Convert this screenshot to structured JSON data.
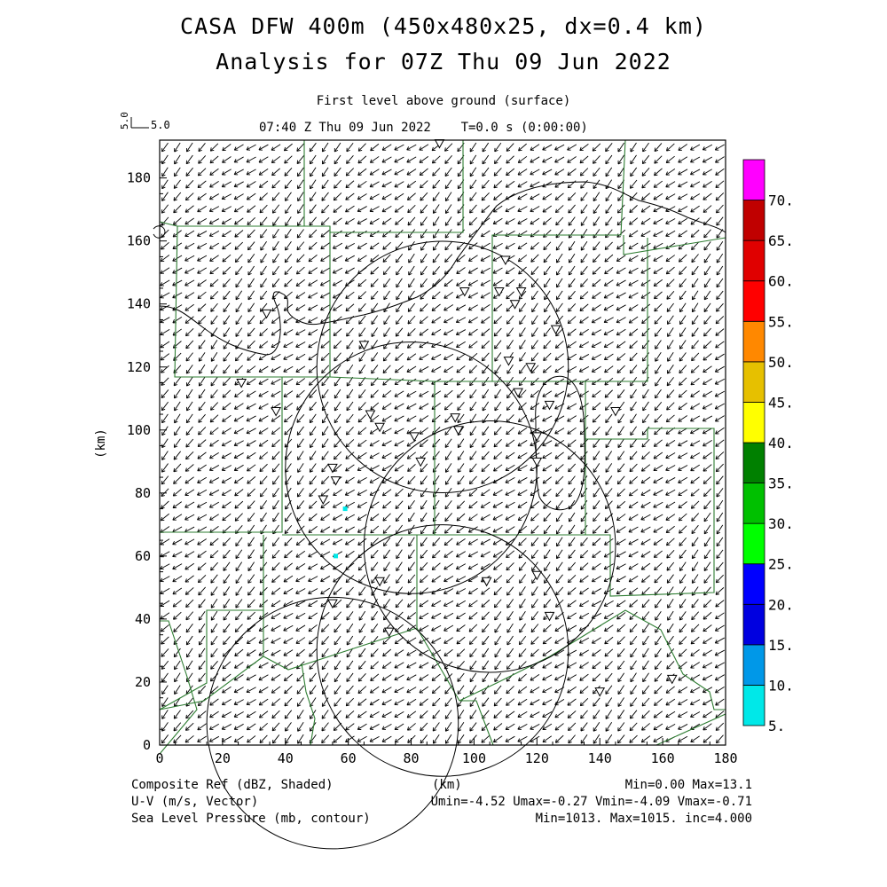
{
  "header": {
    "title_line1": "CASA DFW 400m (450x480x25, dx=0.4 km)",
    "title_line2": "Analysis for 07Z Thu 09 Jun 2022",
    "subtitle": "First level above ground (surface)",
    "time_line": "07:40 Z Thu 09 Jun 2022    T=0.0 s (0:00:00)",
    "vector_scale_value": "5.0"
  },
  "axes": {
    "x_label": "(km)",
    "y_label": "(km)",
    "x_ticks": [
      "0",
      "20",
      "40",
      "60",
      "80",
      "100",
      "120",
      "140",
      "160",
      "180"
    ],
    "y_ticks": [
      "0",
      "20",
      "40",
      "60",
      "80",
      "100",
      "120",
      "140",
      "160",
      "180"
    ],
    "x_range": [
      0,
      180
    ],
    "y_range": [
      0,
      192
    ]
  },
  "colorbar": {
    "labels": [
      "5.",
      "10.",
      "15.",
      "20.",
      "25.",
      "30.",
      "35.",
      "40.",
      "45.",
      "50.",
      "55.",
      "60.",
      "65.",
      "70."
    ],
    "colors": [
      "#00e8e8",
      "#0098e8",
      "#0000e0",
      "#0000ff",
      "#00ff00",
      "#00c000",
      "#008000",
      "#ffff00",
      "#e6c000",
      "#ff8800",
      "#ff0000",
      "#e00000",
      "#c00000",
      "#ff00ff"
    ]
  },
  "footer": {
    "left_line1": "Composite Ref (dBZ, Shaded)",
    "left_line2": "U-V (m/s, Vector)",
    "left_line3": "Sea Level Pressure (mb, contour)",
    "center": "(km)",
    "right_line1": "Min=0.00 Max=13.1",
    "right_line2": "Umin=-4.52 Umax=-0.27 Vmin=-4.09 Vmax=-0.71",
    "right_line3": "Min=1013. Max=1015. inc=4.000"
  },
  "map": {
    "radar_rings_km": [
      {
        "cx": 90,
        "cy": 120,
        "r": 40
      },
      {
        "cx": 80,
        "cy": 88,
        "r": 40
      },
      {
        "cx": 105,
        "cy": 63,
        "r": 40
      },
      {
        "cx": 90,
        "cy": 30,
        "r": 40
      },
      {
        "cx": 55,
        "cy": 7,
        "r": 40
      }
    ],
    "wind": {
      "u_typical": -2.6,
      "v_typical": -2.4
    },
    "stations_km": [
      [
        89,
        191
      ],
      [
        110,
        154
      ],
      [
        97,
        144
      ],
      [
        108,
        144
      ],
      [
        115,
        144
      ],
      [
        113,
        140
      ],
      [
        126,
        132
      ],
      [
        34,
        137
      ],
      [
        65,
        127
      ],
      [
        111,
        122
      ],
      [
        118,
        120
      ],
      [
        114,
        112
      ],
      [
        26,
        115
      ],
      [
        37,
        106
      ],
      [
        67,
        105
      ],
      [
        70,
        101
      ],
      [
        81,
        98
      ],
      [
        94,
        104
      ],
      [
        95,
        100
      ],
      [
        124,
        108
      ],
      [
        145,
        106
      ],
      [
        120,
        98
      ],
      [
        120,
        90
      ],
      [
        83,
        90
      ],
      [
        55,
        88
      ],
      [
        56,
        84
      ],
      [
        52,
        78
      ],
      [
        70,
        52
      ],
      [
        104,
        52
      ],
      [
        120,
        54
      ],
      [
        55,
        45
      ],
      [
        73,
        36
      ],
      [
        124,
        41
      ],
      [
        140,
        17
      ],
      [
        163,
        21
      ]
    ],
    "reflectivity_points_km": [
      [
        59,
        75
      ],
      [
        56,
        60
      ]
    ]
  }
}
